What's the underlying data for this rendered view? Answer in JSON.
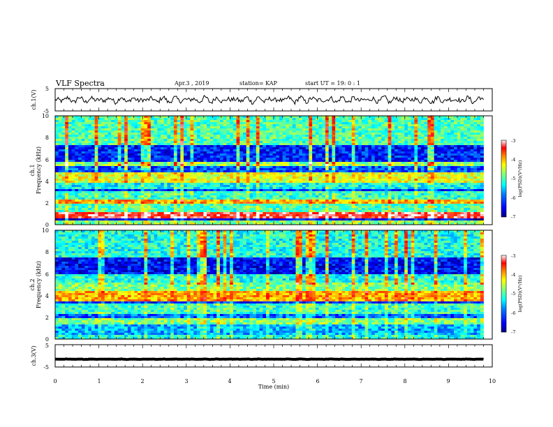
{
  "header": {
    "title": "VLF Spectra",
    "date": "Apr.3 , 2019",
    "station": "station= KAP",
    "start": "start UT = 19: 0 : 1"
  },
  "colors": {
    "trace": "#000000",
    "colormap": [
      "#00007f",
      "#0000ff",
      "#007fff",
      "#00ffff",
      "#7fff7f",
      "#ffff00",
      "#ff7f00",
      "#ff0000",
      "#ffffff"
    ]
  },
  "chart_data": [
    {
      "name": "ch1-waveform",
      "type": "line",
      "ylabel": "ch.1(V)",
      "ylim": [
        -5,
        5
      ],
      "yticks": [
        "5",
        "-5"
      ],
      "xlim": [
        0,
        10
      ],
      "x_end": 9.8,
      "mean": 0.0,
      "amplitude": 2.2
    },
    {
      "name": "ch1-spectrogram",
      "type": "heatmap",
      "ylabel_channel": "ch.1",
      "ylabel": "Frequency (kHz)",
      "ylim": [
        0,
        10
      ],
      "yticks": [
        "0",
        "2",
        "4",
        "6",
        "8",
        "10"
      ],
      "xlim": [
        0,
        10
      ],
      "x_end": 9.8,
      "colorbar": {
        "label": "log(PSD)(V²/Hz)",
        "range": [
          -7,
          -3
        ],
        "ticks": [
          "-3",
          "-4",
          "-5",
          "-6",
          "-7"
        ]
      },
      "bands_khz": [
        {
          "f0": 0.0,
          "f1": 0.3,
          "level": -5.0
        },
        {
          "f0": 0.3,
          "f1": 0.6,
          "level": -6.6
        },
        {
          "f0": 0.6,
          "f1": 1.2,
          "level": -3.4
        },
        {
          "f0": 1.2,
          "f1": 1.9,
          "level": -5.2
        },
        {
          "f0": 1.9,
          "f1": 2.4,
          "level": -4.2
        },
        {
          "f0": 2.4,
          "f1": 3.0,
          "level": -5.3
        },
        {
          "f0": 3.0,
          "f1": 3.3,
          "level": -6.3
        },
        {
          "f0": 3.3,
          "f1": 3.9,
          "level": -5.5
        },
        {
          "f0": 3.9,
          "f1": 4.9,
          "level": -4.6
        },
        {
          "f0": 4.9,
          "f1": 5.3,
          "level": -6.2
        },
        {
          "f0": 5.3,
          "f1": 5.8,
          "level": -4.9
        },
        {
          "f0": 5.8,
          "f1": 7.4,
          "level": -6.4
        },
        {
          "f0": 7.4,
          "f1": 10.0,
          "level": -5.2
        }
      ]
    },
    {
      "name": "ch2-spectrogram",
      "type": "heatmap",
      "ylabel_channel": "ch.2",
      "ylabel": "Frequency (kHz)",
      "ylim": [
        0,
        10
      ],
      "yticks": [
        "0",
        "2",
        "4",
        "6",
        "8",
        "10"
      ],
      "xlim": [
        0,
        10
      ],
      "x_end": 9.8,
      "colorbar": {
        "label": "log(PSD)(V²/Hz)",
        "range": [
          -7,
          -3
        ],
        "ticks": [
          "-3",
          "-4",
          "-5",
          "-6",
          "-7"
        ]
      },
      "bands_khz": [
        {
          "f0": 0.0,
          "f1": 0.4,
          "level": -5.4
        },
        {
          "f0": 0.4,
          "f1": 1.3,
          "level": -5.8
        },
        {
          "f0": 1.3,
          "f1": 1.9,
          "level": -5.0
        },
        {
          "f0": 1.9,
          "f1": 2.4,
          "level": -6.1
        },
        {
          "f0": 2.4,
          "f1": 3.2,
          "level": -5.3
        },
        {
          "f0": 3.2,
          "f1": 3.5,
          "level": -6.4
        },
        {
          "f0": 3.5,
          "f1": 4.5,
          "level": -4.2
        },
        {
          "f0": 4.5,
          "f1": 5.2,
          "level": -5.0
        },
        {
          "f0": 5.2,
          "f1": 5.9,
          "level": -5.4
        },
        {
          "f0": 5.9,
          "f1": 7.5,
          "level": -6.5
        },
        {
          "f0": 7.5,
          "f1": 10.0,
          "level": -5.4
        }
      ]
    },
    {
      "name": "ch3-waveform",
      "type": "line",
      "ylabel": "ch.3(V)",
      "ylim": [
        -5,
        5
      ],
      "yticks": [
        "5",
        "-5"
      ],
      "xlim": [
        0,
        10
      ],
      "x_end": 9.8,
      "mean": -1.5,
      "amplitude": 0.15
    }
  ],
  "xaxis": {
    "label": "Time (min)",
    "ticks": [
      "0",
      "1",
      "2",
      "3",
      "4",
      "5",
      "6",
      "7",
      "8",
      "9",
      "10"
    ]
  }
}
